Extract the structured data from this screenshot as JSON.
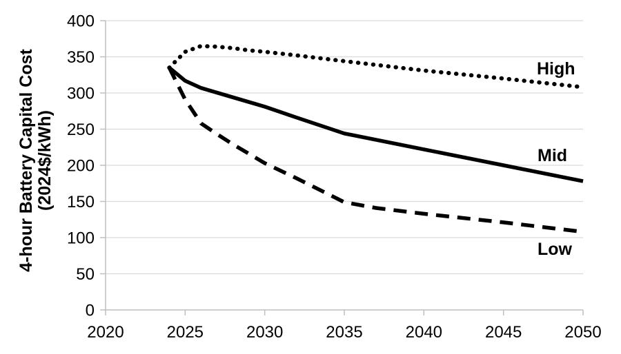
{
  "chart_data": {
    "type": "line",
    "title": "",
    "ylabel_line1": "4-hour Battery Capital Cost",
    "ylabel_line2": "(2024$/kWh)",
    "xlabel": "",
    "xlim": [
      2020,
      2050
    ],
    "ylim": [
      0,
      400
    ],
    "x_ticks": [
      2020,
      2025,
      2030,
      2035,
      2040,
      2045,
      2050
    ],
    "y_ticks": [
      0,
      50,
      100,
      150,
      200,
      250,
      300,
      350,
      400
    ],
    "grid": "horizontal",
    "legend_position": "inline-right",
    "series": [
      {
        "name": "High",
        "label": "High",
        "style": "dotted",
        "points": [
          [
            2024,
            335
          ],
          [
            2025,
            357
          ],
          [
            2026,
            365
          ],
          [
            2027,
            364
          ],
          [
            2028,
            362
          ],
          [
            2029,
            359
          ],
          [
            2030,
            357
          ],
          [
            2032,
            352
          ],
          [
            2035,
            344
          ],
          [
            2040,
            331
          ],
          [
            2045,
            320
          ],
          [
            2050,
            308
          ]
        ]
      },
      {
        "name": "Mid",
        "label": "Mid",
        "style": "solid",
        "points": [
          [
            2024,
            335
          ],
          [
            2025,
            317
          ],
          [
            2026,
            307
          ],
          [
            2028,
            294
          ],
          [
            2030,
            281
          ],
          [
            2032,
            266
          ],
          [
            2035,
            244
          ],
          [
            2040,
            222
          ],
          [
            2045,
            200
          ],
          [
            2050,
            178
          ]
        ]
      },
      {
        "name": "Low",
        "label": "Low",
        "style": "dashed",
        "points": [
          [
            2024,
            335
          ],
          [
            2025,
            291
          ],
          [
            2026,
            258
          ],
          [
            2027,
            243
          ],
          [
            2028,
            229
          ],
          [
            2029,
            216
          ],
          [
            2030,
            203
          ],
          [
            2032,
            182
          ],
          [
            2035,
            149
          ],
          [
            2037,
            141
          ],
          [
            2040,
            133
          ],
          [
            2045,
            121
          ],
          [
            2050,
            108
          ]
        ]
      }
    ],
    "colors": {
      "line": "#000000",
      "gridline": "#d9d9d9",
      "axis": "#bfbfbf",
      "text": "#000000"
    }
  }
}
